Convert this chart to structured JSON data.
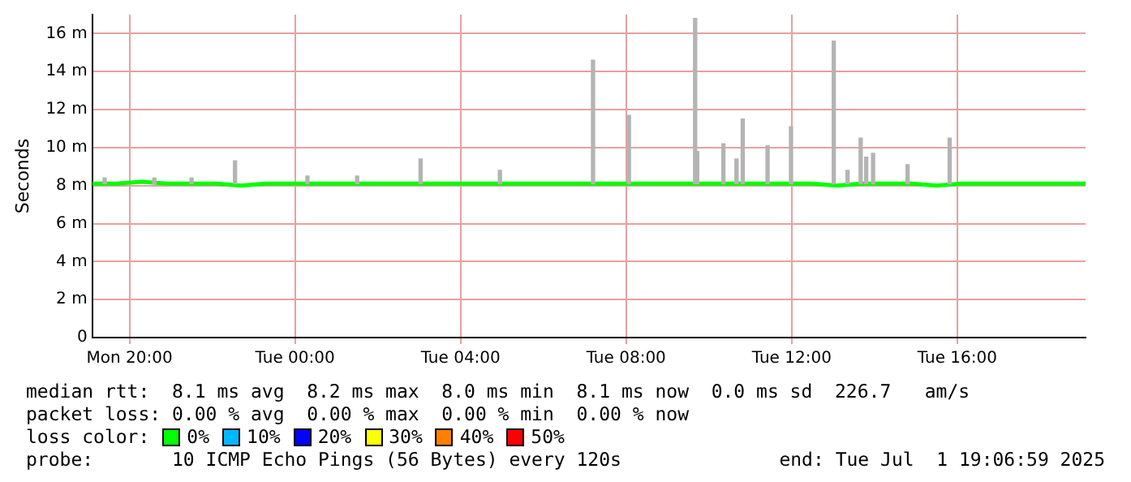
{
  "chart_data": {
    "type": "line",
    "ylabel": "Seconds",
    "legend_title": "loss color:",
    "legend": "bottom",
    "grid": true,
    "xlim": [
      "2025-06-30T19:06",
      "2025-07-01T19:06"
    ],
    "ylim": [
      0,
      17
    ],
    "xticks": [
      {
        "value": "2025-06-30T20:00",
        "label": "Mon 20:00"
      },
      {
        "value": "2025-07-01T00:00",
        "label": "Tue 00:00"
      },
      {
        "value": "2025-07-01T04:00",
        "label": "Tue 04:00"
      },
      {
        "value": "2025-07-01T08:00",
        "label": "Tue 08:00"
      },
      {
        "value": "2025-07-01T12:00",
        "label": "Tue 12:00"
      },
      {
        "value": "2025-07-01T16:00",
        "label": "Tue 16:00"
      }
    ],
    "yticks": [
      0,
      {
        "value": 2,
        "label": "2 m"
      },
      {
        "value": 4,
        "label": "4 m"
      },
      {
        "value": 6,
        "label": "6 m"
      },
      {
        "value": 8,
        "label": "8 m"
      },
      {
        "value": 10,
        "label": "10 m"
      },
      {
        "value": 12,
        "label": "12 m"
      },
      {
        "value": 14,
        "label": "14 m"
      },
      {
        "value": 16,
        "label": "16 m"
      }
    ],
    "series": [
      {
        "type": "bar",
        "color": "#b4b4b4",
        "base": [
          8.1,
          8.1,
          8.1,
          8.1,
          8.1,
          8.1,
          8.1,
          8.1,
          8.1,
          8.1,
          8.1,
          8.1,
          8.1,
          8.1,
          8.1,
          8.1,
          8.1,
          8.1,
          8.1,
          8.1,
          8.1,
          8.1,
          8.1,
          8.1
        ],
        "x": [
          "2025-06-30T19:24",
          "2025-06-30T20:36",
          "2025-06-30T21:30",
          "2025-06-30T22:33",
          "2025-07-01T00:18",
          "2025-07-01T01:30",
          "2025-07-01T03:02",
          "2025-07-01T04:57",
          "2025-07-01T07:12",
          "2025-07-01T08:04",
          "2025-07-01T09:40",
          "2025-07-01T09:43",
          "2025-07-01T10:21",
          "2025-07-01T10:40",
          "2025-07-01T10:49",
          "2025-07-01T11:25",
          "2025-07-01T11:59",
          "2025-07-01T13:01",
          "2025-07-01T13:21",
          "2025-07-01T13:40",
          "2025-07-01T13:48",
          "2025-07-01T13:58",
          "2025-07-01T14:48",
          "2025-07-01T15:49"
        ],
        "values": [
          0.3,
          0.3,
          0.3,
          1.2,
          0.4,
          0.4,
          1.3,
          0.7,
          6.5,
          3.6,
          8.7,
          1.7,
          2.1,
          1.3,
          3.4,
          2,
          3,
          7.5,
          0.7,
          2.4,
          1.4,
          1.6,
          1,
          2.4
        ]
      },
      {
        "name": "0%",
        "color": "#00ff00",
        "x": [
          "2025-06-30T19:06",
          "2025-06-30T19:42",
          "2025-06-30T20:18",
          "2025-06-30T20:54",
          "2025-06-30T21:30",
          "2025-06-30T22:06",
          "2025-06-30T22:42",
          "2025-06-30T23:18",
          "2025-06-30T23:54",
          "2025-07-01T00:30",
          "2025-07-01T01:06",
          "2025-07-01T01:42",
          "2025-07-01T02:18",
          "2025-07-01T02:54",
          "2025-07-01T03:30",
          "2025-07-01T04:06",
          "2025-07-01T04:42",
          "2025-07-01T05:18",
          "2025-07-01T05:54",
          "2025-07-01T06:30",
          "2025-07-01T07:06",
          "2025-07-01T07:42",
          "2025-07-01T08:18",
          "2025-07-01T08:54",
          "2025-07-01T09:30",
          "2025-07-01T10:06",
          "2025-07-01T10:42",
          "2025-07-01T11:18",
          "2025-07-01T11:54",
          "2025-07-01T12:30",
          "2025-07-01T13:06",
          "2025-07-01T13:42",
          "2025-07-01T14:18",
          "2025-07-01T14:54",
          "2025-07-01T15:30",
          "2025-07-01T16:06",
          "2025-07-01T16:42",
          "2025-07-01T17:18",
          "2025-07-01T17:54",
          "2025-07-01T18:30",
          "2025-07-01T19:06"
        ],
        "values": [
          8.1,
          8.1,
          8.2,
          8.1,
          8.1,
          8.1,
          8,
          8.1,
          8.1,
          8.1,
          8.1,
          8.1,
          8.1,
          8.1,
          8.1,
          8.1,
          8.1,
          8.1,
          8.1,
          8.1,
          8.1,
          8.1,
          8.1,
          8.1,
          8.1,
          8.1,
          8.1,
          8.1,
          8.1,
          8.1,
          8,
          8.1,
          8.1,
          8.1,
          8,
          8.1,
          8.1,
          8.1,
          8.1,
          8.1,
          8.1
        ]
      },
      {
        "name": "10%",
        "color": "#00b8ff"
      },
      {
        "name": "20%",
        "color": "#0000ff"
      },
      {
        "name": "30%",
        "color": "#ffff00"
      },
      {
        "name": "40%",
        "color": "#ff8000"
      },
      {
        "name": "50%",
        "color": "#ff0000"
      }
    ],
    "annotations": [
      "median rtt:  8.1 ms avg  8.2 ms max  8.0 ms min  8.1 ms now  0.0 ms sd  226.7   am/s",
      "packet loss: 0.00 % avg  0.00 % max  0.00 % min  0.00 % now",
      "probe:       10 ICMP Echo Pings (56 Bytes) every 120s",
      "end: Tue Jul  1 19:06:59 2025"
    ]
  }
}
